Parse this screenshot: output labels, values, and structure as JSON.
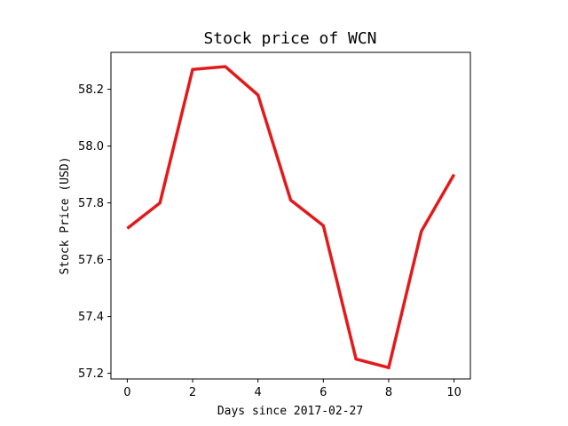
{
  "chart_data": {
    "type": "line",
    "title": "Stock price of WCN",
    "xlabel": "Days since 2017-02-27",
    "ylabel": "Stock Price (USD)",
    "x": [
      0,
      1,
      2,
      3,
      4,
      5,
      6,
      7,
      8,
      9,
      10
    ],
    "series": [
      {
        "values": [
          57.71,
          57.8,
          58.27,
          58.28,
          58.18,
          57.81,
          57.72,
          57.25,
          57.22,
          57.7,
          57.9
        ],
        "color": "#e31a1c"
      }
    ],
    "xlim": [
      -0.5,
      10.5
    ],
    "ylim": [
      57.18,
      58.33
    ],
    "xticks": [
      "0",
      "2",
      "4",
      "6",
      "8",
      "10"
    ],
    "yticks": [
      "57.2",
      "57.4",
      "57.6",
      "57.8",
      "58.0",
      "58.2"
    ],
    "grid": false
  }
}
